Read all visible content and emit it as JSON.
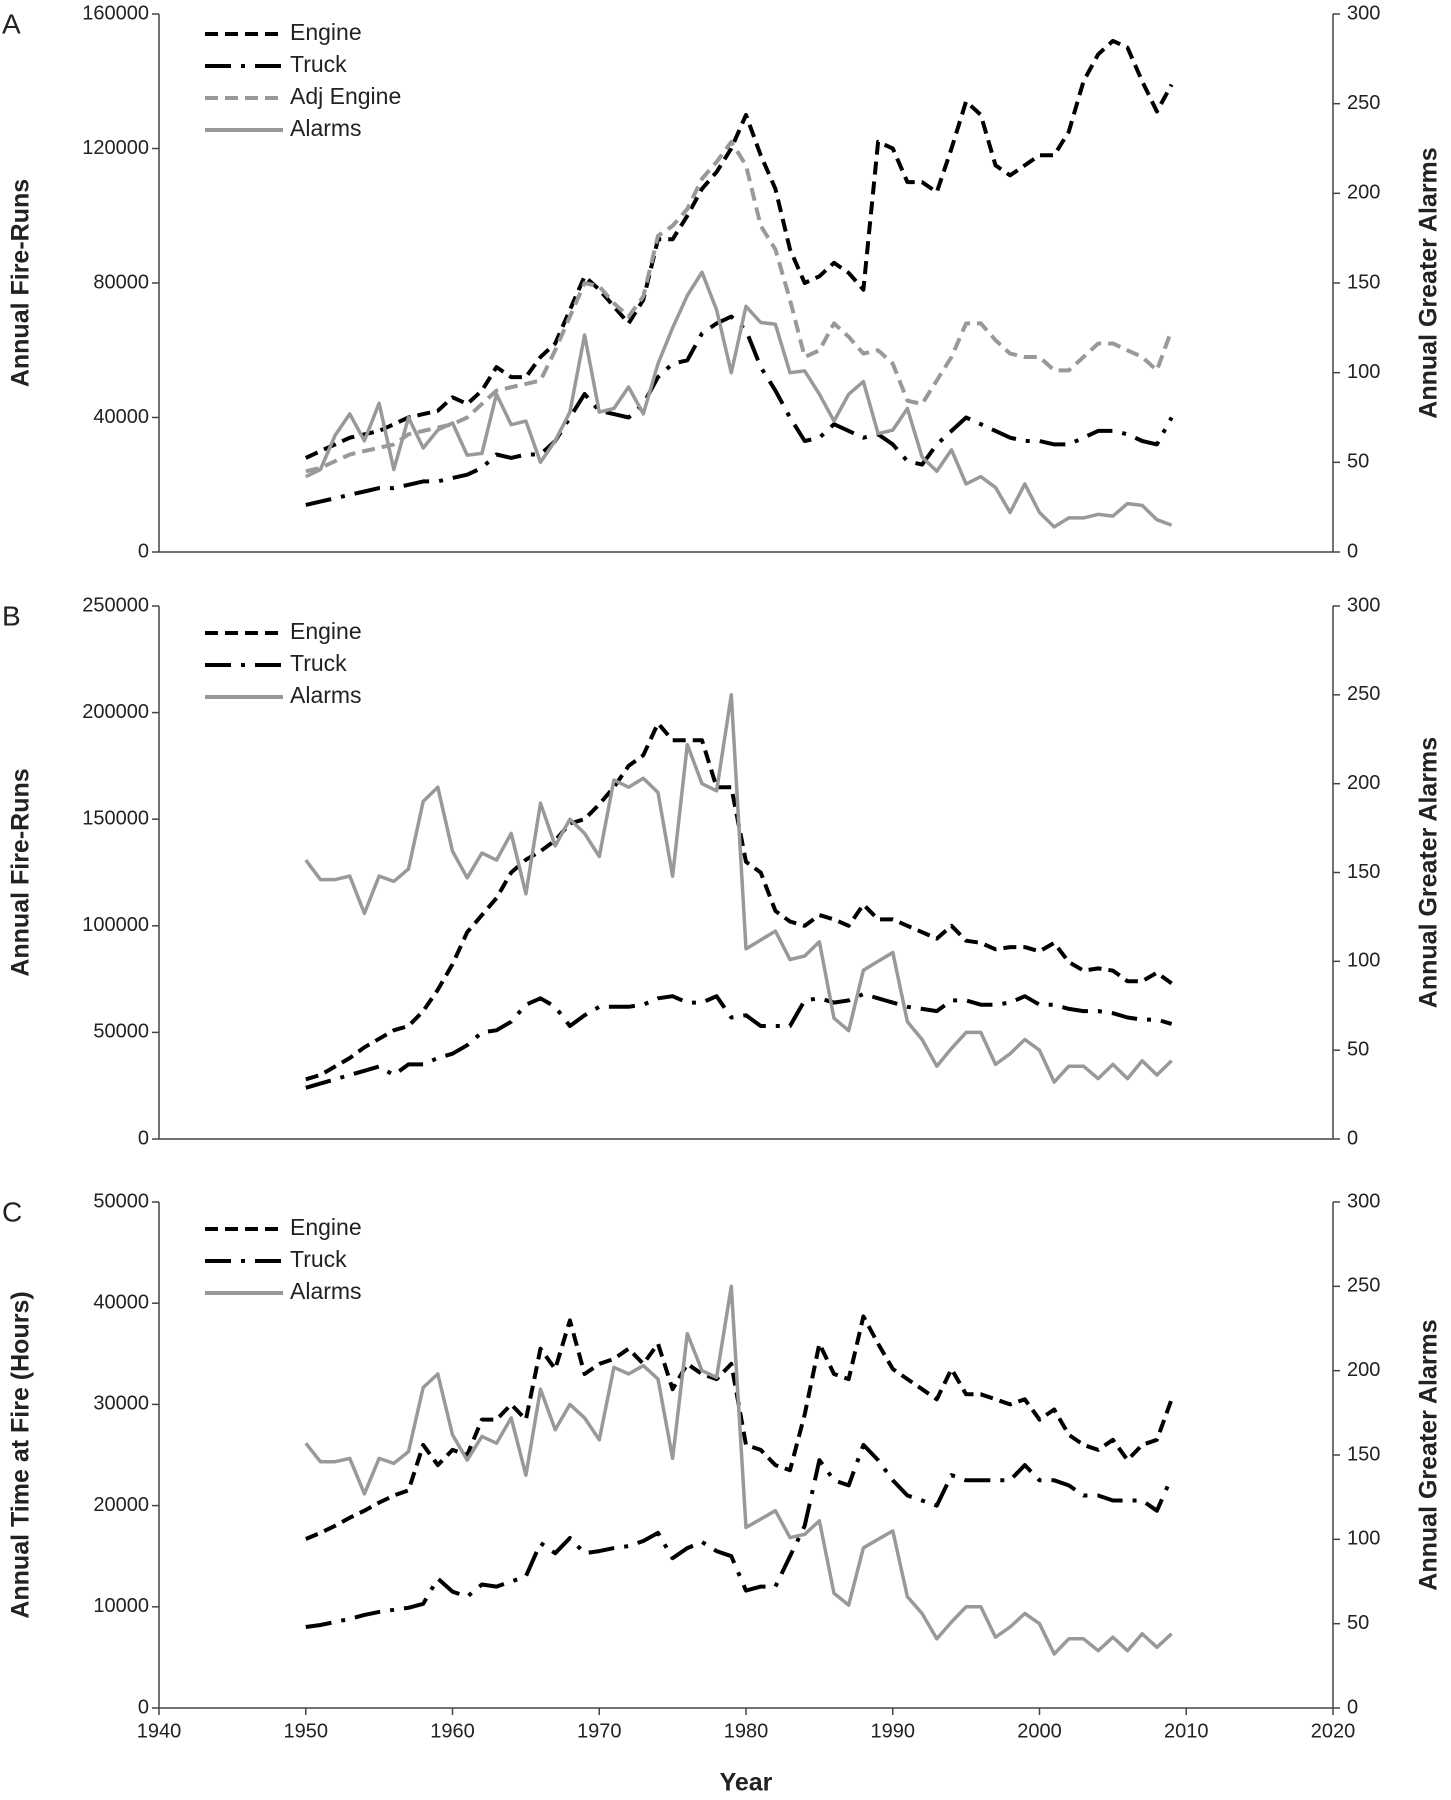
{
  "chart_data": [
    {
      "type": "line",
      "label": "A",
      "ylabel": "Annual Fire-Runs",
      "y2label": "Annual Greater Alarms",
      "xlim": [
        1940,
        2020
      ],
      "ylim": [
        0,
        160000
      ],
      "yticks": [
        0,
        40000,
        80000,
        120000,
        160000
      ],
      "y2lim": [
        0,
        300
      ],
      "y2ticks": [
        0,
        50,
        100,
        150,
        200,
        250,
        300
      ],
      "x": [
        1950,
        1951,
        1952,
        1953,
        1954,
        1955,
        1956,
        1957,
        1958,
        1959,
        1960,
        1961,
        1962,
        1963,
        1964,
        1965,
        1966,
        1967,
        1968,
        1969,
        1970,
        1971,
        1972,
        1973,
        1974,
        1975,
        1976,
        1977,
        1978,
        1979,
        1980,
        1981,
        1982,
        1983,
        1984,
        1985,
        1986,
        1987,
        1988,
        1989,
        1990,
        1991,
        1992,
        1993,
        1994,
        1995,
        1996,
        1997,
        1998,
        1999,
        2000,
        2001,
        2002,
        2003,
        2004,
        2005,
        2006,
        2007,
        2008,
        2009
      ],
      "series": [
        {
          "name": "Engine",
          "color": "#000000",
          "style": "dashed",
          "values": [
            28000,
            30000,
            32000,
            34000,
            35000,
            36000,
            38000,
            40000,
            41000,
            42000,
            46000,
            44000,
            48000,
            55000,
            52000,
            52000,
            58000,
            62000,
            72000,
            82000,
            78000,
            73000,
            68000,
            75000,
            93000,
            93000,
            100000,
            108000,
            113000,
            120000,
            130000,
            118000,
            108000,
            90000,
            80000,
            82000,
            86000,
            83000,
            78000,
            122000,
            120000,
            110000,
            110000,
            107000,
            120000,
            134000,
            130000,
            115000,
            112000,
            115000,
            118000,
            118000,
            125000,
            140000,
            148000,
            152000,
            150000,
            140000,
            131000,
            139000
          ]
        },
        {
          "name": "Truck",
          "color": "#000000",
          "style": "dashdot",
          "values": [
            14000,
            15000,
            16000,
            17000,
            18000,
            19000,
            19000,
            20000,
            21000,
            21000,
            22000,
            23000,
            25000,
            29000,
            28000,
            29000,
            29000,
            33000,
            40000,
            47000,
            42000,
            41000,
            40000,
            44000,
            52000,
            56000,
            57000,
            65000,
            68000,
            70000,
            66000,
            55000,
            48000,
            40000,
            33000,
            34000,
            38000,
            36000,
            34000,
            35000,
            32000,
            27000,
            26000,
            32000,
            36000,
            40000,
            38000,
            36000,
            34000,
            33000,
            33000,
            32000,
            32000,
            34000,
            36000,
            36000,
            35000,
            33000,
            32000,
            40000
          ]
        },
        {
          "name": "Adj Engine",
          "color": "#999999",
          "style": "dashed",
          "values": [
            24000,
            25000,
            27000,
            29000,
            30000,
            31000,
            32000,
            35000,
            36000,
            37000,
            38000,
            40000,
            44000,
            48000,
            49000,
            50000,
            51000,
            60000,
            70000,
            80000,
            79000,
            74000,
            70000,
            76000,
            94000,
            97000,
            102000,
            111000,
            116000,
            122000,
            115000,
            97000,
            90000,
            75000,
            58000,
            60000,
            68000,
            64000,
            59000,
            60000,
            56000,
            45000,
            44000,
            51000,
            58000,
            68000,
            68000,
            63000,
            59000,
            58000,
            58000,
            54000,
            54000,
            58000,
            62000,
            62000,
            60000,
            58000,
            54000,
            66000
          ]
        },
        {
          "name": "Alarms",
          "color": "#999999",
          "style": "solid",
          "axis": "y2",
          "values": [
            42,
            46,
            65,
            77,
            62,
            83,
            46,
            75,
            58,
            68,
            72,
            54,
            55,
            88,
            71,
            73,
            50,
            62,
            78,
            121,
            78,
            80,
            92,
            77,
            105,
            125,
            143,
            156,
            135,
            100,
            137,
            128,
            127,
            100,
            101,
            88,
            73,
            88,
            95,
            66,
            68,
            80,
            53,
            45,
            57,
            38,
            42,
            36,
            22,
            38,
            22,
            14,
            19,
            19,
            21,
            20,
            27,
            26,
            18,
            15
          ]
        }
      ]
    },
    {
      "type": "line",
      "label": "B",
      "ylabel": "Annual Fire-Runs",
      "y2label": "Annual Greater Alarms",
      "xlim": [
        1940,
        2020
      ],
      "ylim": [
        0,
        250000
      ],
      "yticks": [
        0,
        50000,
        100000,
        150000,
        200000,
        250000
      ],
      "y2lim": [
        0,
        300
      ],
      "y2ticks": [
        0,
        50,
        100,
        150,
        200,
        250,
        300
      ],
      "x": [
        1950,
        1951,
        1952,
        1953,
        1954,
        1955,
        1956,
        1957,
        1958,
        1959,
        1960,
        1961,
        1962,
        1963,
        1964,
        1965,
        1966,
        1967,
        1968,
        1969,
        1970,
        1971,
        1972,
        1973,
        1974,
        1975,
        1976,
        1977,
        1978,
        1979,
        1980,
        1981,
        1982,
        1983,
        1984,
        1985,
        1986,
        1987,
        1988,
        1989,
        1990,
        1991,
        1992,
        1993,
        1994,
        1995,
        1996,
        1997,
        1998,
        1999,
        2000,
        2001,
        2002,
        2003,
        2004,
        2005,
        2006,
        2007,
        2008,
        2009
      ],
      "series": [
        {
          "name": "Engine",
          "color": "#000000",
          "style": "dashed",
          "values": [
            28000,
            30000,
            34000,
            38000,
            43000,
            47000,
            51000,
            53000,
            60000,
            70000,
            82000,
            97000,
            105000,
            113000,
            125000,
            131000,
            135000,
            140000,
            148000,
            150000,
            157000,
            165000,
            175000,
            180000,
            195000,
            187000,
            187000,
            187000,
            165000,
            165000,
            130000,
            125000,
            107000,
            102000,
            100000,
            105000,
            103000,
            100000,
            110000,
            103000,
            103000,
            100000,
            97000,
            94000,
            100000,
            93000,
            92000,
            89000,
            90000,
            90000,
            88000,
            92000,
            83000,
            79000,
            80000,
            79000,
            74000,
            74000,
            78000,
            73000
          ]
        },
        {
          "name": "Truck",
          "color": "#000000",
          "style": "dashdot",
          "values": [
            24000,
            26000,
            28000,
            30000,
            32000,
            34000,
            30000,
            35000,
            35000,
            38000,
            40000,
            44000,
            50000,
            51000,
            55000,
            63000,
            66000,
            62000,
            53000,
            58000,
            62000,
            62000,
            62000,
            63000,
            66000,
            67000,
            64000,
            64000,
            67000,
            57000,
            58000,
            53000,
            53000,
            53000,
            65000,
            66000,
            64000,
            65000,
            68000,
            66000,
            64000,
            62000,
            61000,
            60000,
            65000,
            65000,
            63000,
            63000,
            64000,
            67000,
            63000,
            63000,
            61000,
            60000,
            60000,
            59000,
            57000,
            56000,
            56000,
            54000
          ]
        },
        {
          "name": "Alarms",
          "color": "#999999",
          "style": "solid",
          "axis": "y2",
          "values": [
            157,
            146,
            146,
            148,
            127,
            148,
            145,
            152,
            190,
            198,
            162,
            147,
            161,
            157,
            172,
            138,
            189,
            165,
            180,
            172,
            159,
            202,
            198,
            203,
            195,
            148,
            222,
            200,
            196,
            250,
            107,
            112,
            117,
            101,
            103,
            111,
            68,
            61,
            95,
            100,
            105,
            66,
            56,
            41,
            51,
            60,
            60,
            42,
            48,
            56,
            50,
            32,
            41,
            41,
            34,
            42,
            34,
            44,
            36,
            44
          ]
        }
      ]
    },
    {
      "type": "line",
      "label": "C",
      "ylabel": "Annual Time at Fire (Hours)",
      "y2label": "Annual Greater Alarms",
      "xlabel": "Year",
      "xlim": [
        1940,
        2020
      ],
      "xticks": [
        1940,
        1950,
        1960,
        1970,
        1980,
        1990,
        2000,
        2010,
        2020
      ],
      "ylim": [
        0,
        50000
      ],
      "yticks": [
        0,
        10000,
        20000,
        30000,
        40000,
        50000
      ],
      "y2lim": [
        0,
        300
      ],
      "y2ticks": [
        0,
        50,
        100,
        150,
        200,
        250,
        300
      ],
      "x": [
        1950,
        1951,
        1952,
        1953,
        1954,
        1955,
        1956,
        1957,
        1958,
        1959,
        1960,
        1961,
        1962,
        1963,
        1964,
        1965,
        1966,
        1967,
        1968,
        1969,
        1970,
        1971,
        1972,
        1973,
        1974,
        1975,
        1976,
        1977,
        1978,
        1979,
        1980,
        1981,
        1982,
        1983,
        1984,
        1985,
        1986,
        1987,
        1988,
        1989,
        1990,
        1991,
        1992,
        1993,
        1994,
        1995,
        1996,
        1997,
        1998,
        1999,
        2000,
        2001,
        2002,
        2003,
        2004,
        2005,
        2006,
        2007,
        2008,
        2009
      ],
      "series": [
        {
          "name": "Engine",
          "color": "#000000",
          "style": "dashed",
          "values": [
            16700,
            17300,
            18000,
            18800,
            19500,
            20300,
            21000,
            21500,
            26000,
            24000,
            25500,
            25000,
            28500,
            28500,
            30000,
            28500,
            35500,
            33500,
            38300,
            33000,
            34000,
            34500,
            35500,
            34000,
            36000,
            31500,
            34000,
            33000,
            32500,
            34000,
            26000,
            25500,
            24000,
            23500,
            29000,
            36000,
            33000,
            32500,
            38700,
            36000,
            33500,
            32500,
            31500,
            30500,
            33500,
            31000,
            31000,
            30500,
            30000,
            30500,
            28500,
            29500,
            27000,
            26000,
            25500,
            26500,
            24500,
            26000,
            26500,
            30500
          ]
        },
        {
          "name": "Truck",
          "color": "#000000",
          "style": "dashdot",
          "values": [
            8000,
            8200,
            8500,
            8800,
            9200,
            9500,
            9700,
            9900,
            10300,
            12800,
            11500,
            11000,
            12200,
            12000,
            12500,
            13000,
            16300,
            15300,
            16800,
            15300,
            15500,
            15800,
            16000,
            16500,
            17300,
            14800,
            15800,
            16400,
            15500,
            15000,
            11600,
            12000,
            12000,
            15000,
            18000,
            24500,
            22500,
            22000,
            26000,
            24500,
            22500,
            21000,
            20500,
            20000,
            23000,
            22500,
            22500,
            22500,
            22500,
            24000,
            22500,
            22500,
            22000,
            21000,
            21000,
            20500,
            20500,
            20500,
            19500,
            22800
          ]
        },
        {
          "name": "Alarms",
          "color": "#999999",
          "style": "solid",
          "axis": "y2",
          "values": [
            157,
            146,
            146,
            148,
            127,
            148,
            145,
            152,
            190,
            198,
            162,
            147,
            161,
            157,
            172,
            138,
            189,
            165,
            180,
            172,
            159,
            202,
            198,
            203,
            195,
            148,
            222,
            200,
            196,
            250,
            107,
            112,
            117,
            101,
            103,
            111,
            68,
            61,
            95,
            100,
            105,
            66,
            56,
            41,
            51,
            60,
            60,
            42,
            48,
            56,
            50,
            32,
            41,
            41,
            34,
            42,
            34,
            44,
            36,
            44
          ]
        }
      ]
    }
  ]
}
